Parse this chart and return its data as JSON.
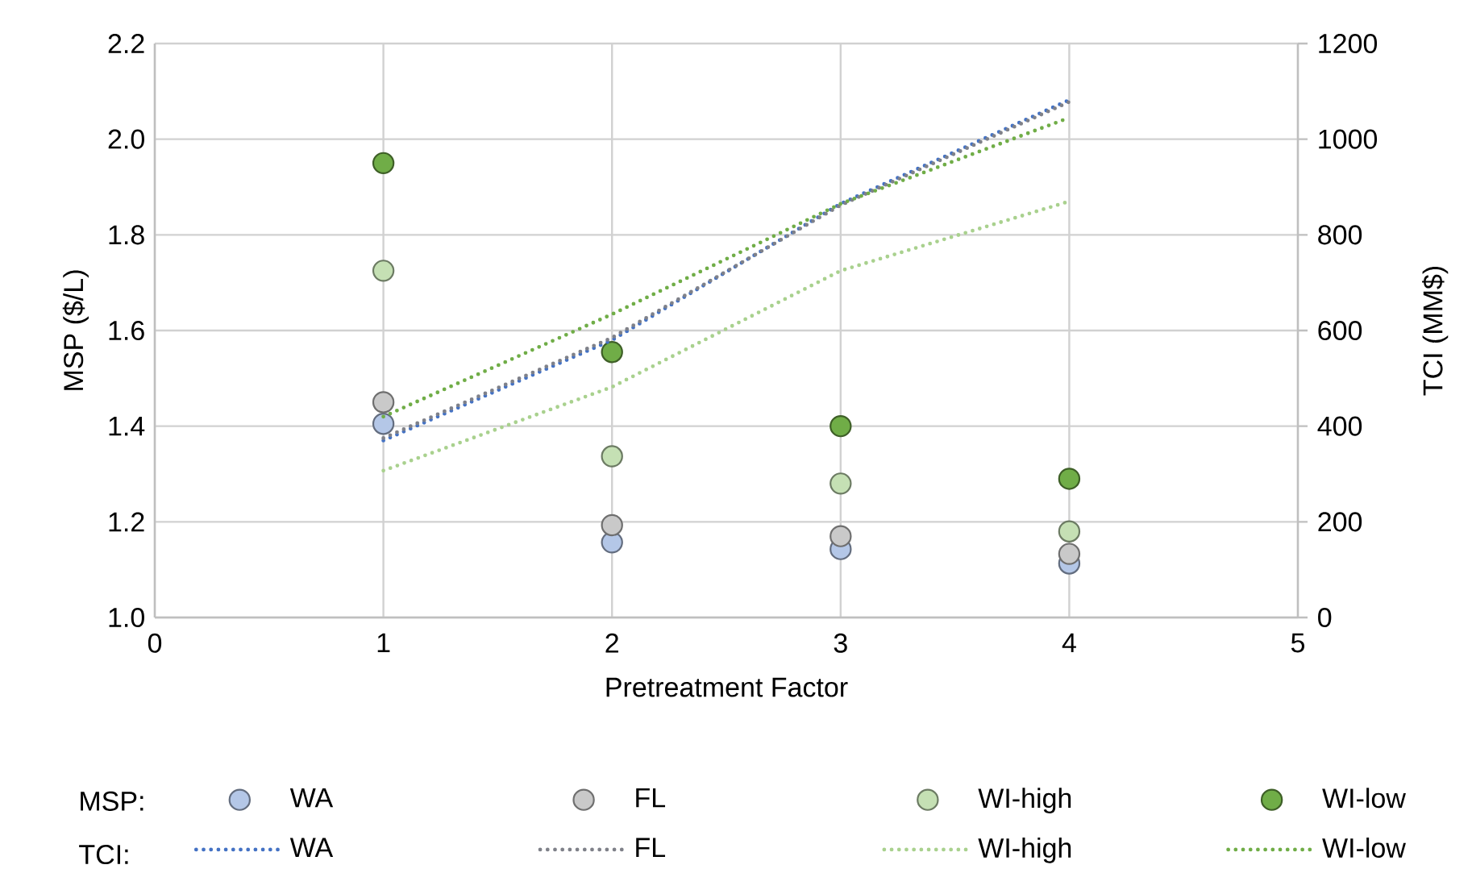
{
  "chart_data": {
    "type": "scatter",
    "xlabel": "Pretreatment Factor",
    "ylabel": "MSP ($/L)",
    "y2label": "TCI (MM$)",
    "x": [
      1,
      2,
      3,
      4
    ],
    "xlim": [
      0,
      5
    ],
    "xticks": [
      0,
      1,
      2,
      3,
      4,
      5
    ],
    "ylim": [
      1.0,
      2.2
    ],
    "yticks": [
      {
        "value": 1.0,
        "label": "1.0"
      },
      1.2,
      1.4,
      1.6,
      1.8,
      {
        "value": 2.0,
        "label": "2.0"
      },
      2.2
    ],
    "y2lim": [
      0,
      1200
    ],
    "y2ticks": [
      0,
      200,
      400,
      600,
      800,
      1000,
      1200
    ],
    "grid": true,
    "legend": "bottom",
    "annotations": [
      "MSP:",
      "TCI:"
    ],
    "series": [
      {
        "name": "WA",
        "marker": "circle",
        "color": "#b4c7e7",
        "values": [
          1.405,
          1.157,
          1.143,
          1.113
        ]
      },
      {
        "name": "FL",
        "marker": "circle",
        "color": "#c9c9c9",
        "values": [
          1.45,
          1.193,
          1.17,
          1.133
        ]
      },
      {
        "name": "WI-high",
        "marker": "circle",
        "color": "#c5e0b4",
        "values": [
          1.725,
          1.337,
          1.28,
          1.18
        ]
      },
      {
        "name": "WI-low",
        "marker": "circle",
        "color": "#70ad47",
        "values": [
          1.95,
          1.555,
          1.4,
          1.29
        ]
      },
      {
        "name": "WA",
        "type": "line",
        "marker": "none",
        "axis": "y2",
        "line_style": "dotted",
        "color": "#4472c4",
        "values": [
          370,
          580,
          865,
          1082
        ]
      },
      {
        "name": "FL",
        "type": "line",
        "marker": "none",
        "axis": "y2",
        "line_style": "dotted",
        "color": "#7f8189",
        "values": [
          375,
          585,
          862,
          1078
        ]
      },
      {
        "name": "WI-high",
        "type": "line",
        "marker": "none",
        "axis": "y2",
        "line_style": "dotted",
        "color": "#a9d18e",
        "values": [
          307,
          482,
          725,
          870
        ]
      },
      {
        "name": "WI-low",
        "type": "line",
        "marker": "none",
        "axis": "y2",
        "line_style": "dotted",
        "color": "#70ad47",
        "values": [
          420,
          634,
          865,
          1045
        ]
      }
    ]
  }
}
